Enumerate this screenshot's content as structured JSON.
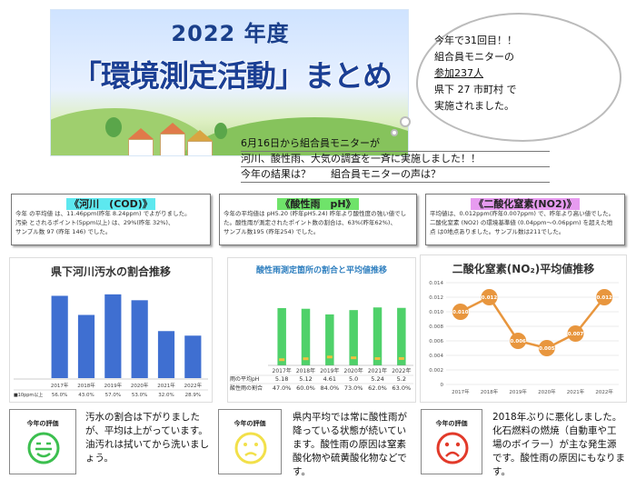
{
  "banner": {
    "year": "2022 年度",
    "title": "「環境測定活動」まとめ"
  },
  "speech": {
    "lines": [
      "今年で31回目！！",
      "組合員モニターの",
      "参加237人",
      "県下 27 市町村 で",
      "実施されました。"
    ]
  },
  "notice": {
    "lines": [
      "6月16日から組合員モニターが",
      "河川、酸性雨、大気の調査を一斉に実施しました！！",
      "今年の結果は？　　組合員モニターの声は？"
    ]
  },
  "info_boxes": [
    {
      "title": "《河川　(COD)》",
      "highlight": "#5de8ef",
      "body": [
        "今年 の平均値 は、11.46ppm(昨年 8.24ppm) でよがりました。",
        "汚染 とされるポイント(5ppm以上) は、29%(昨年 32%)、",
        "サンプル数 97 (昨年 146) でした。"
      ]
    },
    {
      "title": "《酸性雨　pH》",
      "highlight": "#6fe36a",
      "body": [
        "今年の平均値は pH5.20 (昨年pH5.24) 昨年より酸性度の強い値でし",
        "た。酸性雨が測定されたポイント数の割合は、63%(昨年62%)、",
        "サンプル数195 (昨年254) でした。"
      ]
    },
    {
      "title": "《二酸化窒素(NO2)》",
      "highlight": "#e79bf0",
      "body": [
        "平均値は、0.012ppm(昨年0.007ppm) で、昨年より高い値でした。",
        "二酸化窒素 (NO2) の環境基準値 (0.04ppm～0.06ppm) を超えた地",
        "点 は0地点ありました。サンプル数は211でした。"
      ]
    }
  ],
  "charts": {
    "river": {
      "title": "県下河川汚水の割合推移",
      "legend": "10ppm以上",
      "bar_color": "#3f6fd1",
      "table_label": "■10ppm以上"
    },
    "rain": {
      "title": "酸性雨測定箇所の割合と平均値推移",
      "bar_color": "#4fd16a",
      "row1_label": "雨の平均pH",
      "row2_label": "酸性雨の割合",
      "pct_labels": [
        "47.0%",
        "60.0%",
        "84.0%",
        "73.0%",
        "62.0%",
        "63.0%"
      ]
    },
    "no2": {
      "title": "二酸化窒素(NO₂)平均値推移",
      "line_color": "#e8963e",
      "year_labels": [
        "2017年",
        "2018年",
        "2019年",
        "2020年",
        "2021年",
        "2022年"
      ]
    }
  },
  "chart_data": [
    {
      "type": "bar",
      "title": "県下河川汚水の割合推移",
      "categories": [
        "2017年",
        "2018年",
        "2019年",
        "2020年",
        "2021年",
        "2022年"
      ],
      "series": [
        {
          "name": "10ppm以上",
          "values": [
            56.0,
            43.0,
            57.0,
            53.0,
            32.0,
            28.9
          ]
        }
      ],
      "value_labels": [
        "56.0%",
        "43.0%",
        "57.0%",
        "53.0%",
        "32.0%",
        "28.9%"
      ],
      "ylim": [
        0,
        60
      ]
    },
    {
      "type": "bar",
      "title": "酸性雨測定箇所の割合と平均値推移",
      "categories": [
        "2017年",
        "2018年",
        "2019年",
        "2020年",
        "2021年",
        "2022年"
      ],
      "series": [
        {
          "name": "雨の平均pH",
          "values": [
            5.18,
            5.12,
            4.61,
            5.0,
            5.24,
            5.2
          ]
        },
        {
          "name": "酸性雨の割合",
          "values": [
            47.0,
            60.0,
            84.0,
            73.0,
            62.0,
            63.0
          ]
        }
      ],
      "ylim": [
        0,
        6
      ]
    },
    {
      "type": "line",
      "title": "二酸化窒素(NO₂)平均値推移",
      "categories": [
        "2017年",
        "2018年",
        "2019年",
        "2020年",
        "2021年",
        "2022年"
      ],
      "series": [
        {
          "values": [
            0.01,
            0.012,
            0.006,
            0.005,
            0.007,
            0.012
          ]
        }
      ],
      "ylim": [
        0,
        0.014
      ],
      "yticks": [
        "0",
        "0.002",
        "0.004",
        "0.006",
        "0.008",
        "0.010",
        "0.012",
        "0.014"
      ],
      "grid": true
    }
  ],
  "evaluations": [
    {
      "label": "今年の評価",
      "face": "happy",
      "color": "#3cbf4f",
      "text": "汚水の割合は下がりましたが、平均は上がっています。油汚れは拭いてから洗いましょう。"
    },
    {
      "label": "今年の評価",
      "face": "neutral",
      "color": "#f2e04a",
      "text": "県内平均では常に酸性雨が降っている状態が続いています。酸性雨の原因は窒素酸化物や硫黄酸化物などです。"
    },
    {
      "label": "今年の評価",
      "face": "sad",
      "color": "#e23a2a",
      "text": "2018年ぶりに悪化しました。化石燃料の燃焼（自動車や工場のボイラー）が主な発生源です。酸性雨の原因にもなります。"
    }
  ]
}
